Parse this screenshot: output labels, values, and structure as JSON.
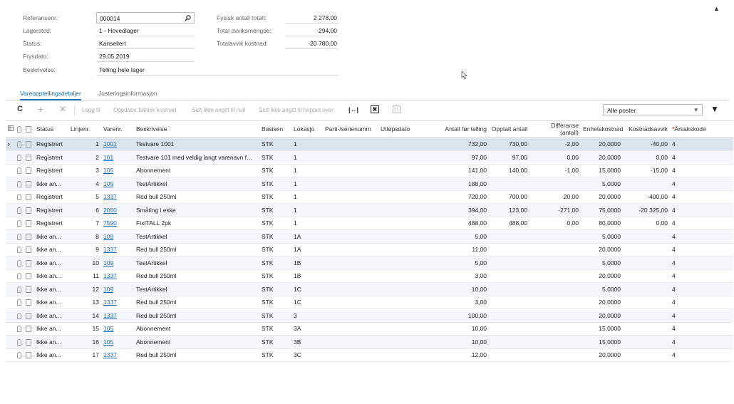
{
  "header": {
    "labels": [
      "Referansenr.:",
      "Lagersted:",
      "Status:",
      "Frysdato:",
      "Beskrivelse:"
    ],
    "reference": "000014",
    "warehouse": "1 - Hovedlager",
    "status": "Kansellert",
    "freeze_date": "29.05.2019",
    "description": "Telling hele lager",
    "totals_labels": [
      "Fysisk antall totalt:",
      "Total avviksmengde:",
      "Totalavvik kostnad:"
    ],
    "totals_values": [
      "2 278,00",
      "-294,00",
      "-20 780,00"
    ],
    "collapse_glyph": "▲"
  },
  "tabs": [
    "Vareopptellingsdetaljer",
    "Justeringsinformasjon"
  ],
  "toolbar": {
    "refresh": "C",
    "add": "+",
    "delete": "✕",
    "actions": [
      "Legg til",
      "Oppdater faktisk kostnad",
      "Sett ikke angitt til null",
      "Sett ikke angitt til hoppet over"
    ],
    "filter_value": "Alle poster",
    "dropdown": "▾",
    "filter_icon": "▼",
    "fit_icon": "|↔|",
    "excel_icon": "✖",
    "upload_icon": "⇧"
  },
  "columns": [
    "Status",
    "Linjenr.",
    "Varenr.",
    "Beskrivelse",
    "Basisen",
    "Lokasjo",
    "Parti-/serienumm",
    "Utløpsdato",
    "Antall før telling",
    "Opptalt antall",
    "Differanse (antall)",
    "Enhetskostnad",
    "Kostnadsavvik",
    "Årsakskode"
  ],
  "required_mark": "*",
  "row_pointer": "›",
  "rows": [
    [
      "Registrert",
      "1",
      "1001",
      "Testvare 1001",
      "STK",
      "1",
      "",
      "",
      "732,00",
      "730,00",
      "-2,00",
      "20,0000",
      "-40,00",
      "4"
    ],
    [
      "Registrert",
      "2",
      "101",
      "Testvare 101 med veldig langt varenavn f…",
      "STK",
      "1",
      "",
      "",
      "97,00",
      "97,00",
      "0,00",
      "20,0000",
      "0,00",
      "4"
    ],
    [
      "Registrert",
      "3",
      "105",
      "Abonnement",
      "STK",
      "1",
      "",
      "",
      "141,00",
      "140,00",
      "-1,00",
      "15,0000",
      "-15,00",
      "4"
    ],
    [
      "Ikke an...",
      "4",
      "109",
      "TestArtikkel",
      "STK",
      "1",
      "",
      "",
      "188,00",
      "",
      "",
      "5,0000",
      "",
      "4"
    ],
    [
      "Registrert",
      "5",
      "1337",
      "Red bull 250ml",
      "STK",
      "1",
      "",
      "",
      "720,00",
      "700,00",
      "-20,00",
      "20,0000",
      "-400,00",
      "4"
    ],
    [
      "Registrert",
      "6",
      "2050",
      "Småting i eske",
      "STK",
      "1",
      "",
      "",
      "394,00",
      "123,00",
      "-271,00",
      "75,0000",
      "-20 325,00",
      "4"
    ],
    [
      "Registrert",
      "7",
      "7590",
      "FixITALL 2pk",
      "STK",
      "1",
      "",
      "",
      "488,00",
      "488,00",
      "0,00",
      "80,0000",
      "0,00",
      "4"
    ],
    [
      "Ikke an...",
      "8",
      "109",
      "TestArtikkel",
      "STK",
      "1A",
      "",
      "",
      "5,00",
      "",
      "",
      "5,0000",
      "",
      "4"
    ],
    [
      "Ikke an...",
      "9",
      "1337",
      "Red bull 250ml",
      "STK",
      "1A",
      "",
      "",
      "11,00",
      "",
      "",
      "20,0000",
      "",
      "4"
    ],
    [
      "Ikke an...",
      "10",
      "109",
      "TestArtikkel",
      "STK",
      "1B",
      "",
      "",
      "5,00",
      "",
      "",
      "5,0000",
      "",
      "4"
    ],
    [
      "Ikke an...",
      "11",
      "1337",
      "Red bull 250ml",
      "STK",
      "1B",
      "",
      "",
      "3,00",
      "",
      "",
      "20,0000",
      "",
      "4"
    ],
    [
      "Ikke an...",
      "12",
      "109",
      "TestArtikkel",
      "STK",
      "1C",
      "",
      "",
      "10,00",
      "",
      "",
      "5,0000",
      "",
      "4"
    ],
    [
      "Ikke an...",
      "13",
      "1337",
      "Red bull 250ml",
      "STK",
      "1C",
      "",
      "",
      "3,00",
      "",
      "",
      "20,0000",
      "",
      "4"
    ],
    [
      "Ikke an...",
      "14",
      "1337",
      "Red bull 250ml",
      "STK",
      "3",
      "",
      "",
      "100,00",
      "",
      "",
      "20,0000",
      "",
      "4"
    ],
    [
      "Ikke an...",
      "15",
      "105",
      "Abonnement",
      "STK",
      "3A",
      "",
      "",
      "10,00",
      "",
      "",
      "15,0000",
      "",
      "4"
    ],
    [
      "Ikke an...",
      "16",
      "105",
      "Abonnement",
      "STK",
      "3B",
      "",
      "",
      "10,00",
      "",
      "",
      "15,0000",
      "",
      "4"
    ],
    [
      "Ikke an...",
      "17",
      "1337",
      "Red bull 250ml",
      "STK",
      "3C",
      "",
      "",
      "12,00",
      "",
      "",
      "20,0000",
      "",
      "4"
    ]
  ]
}
